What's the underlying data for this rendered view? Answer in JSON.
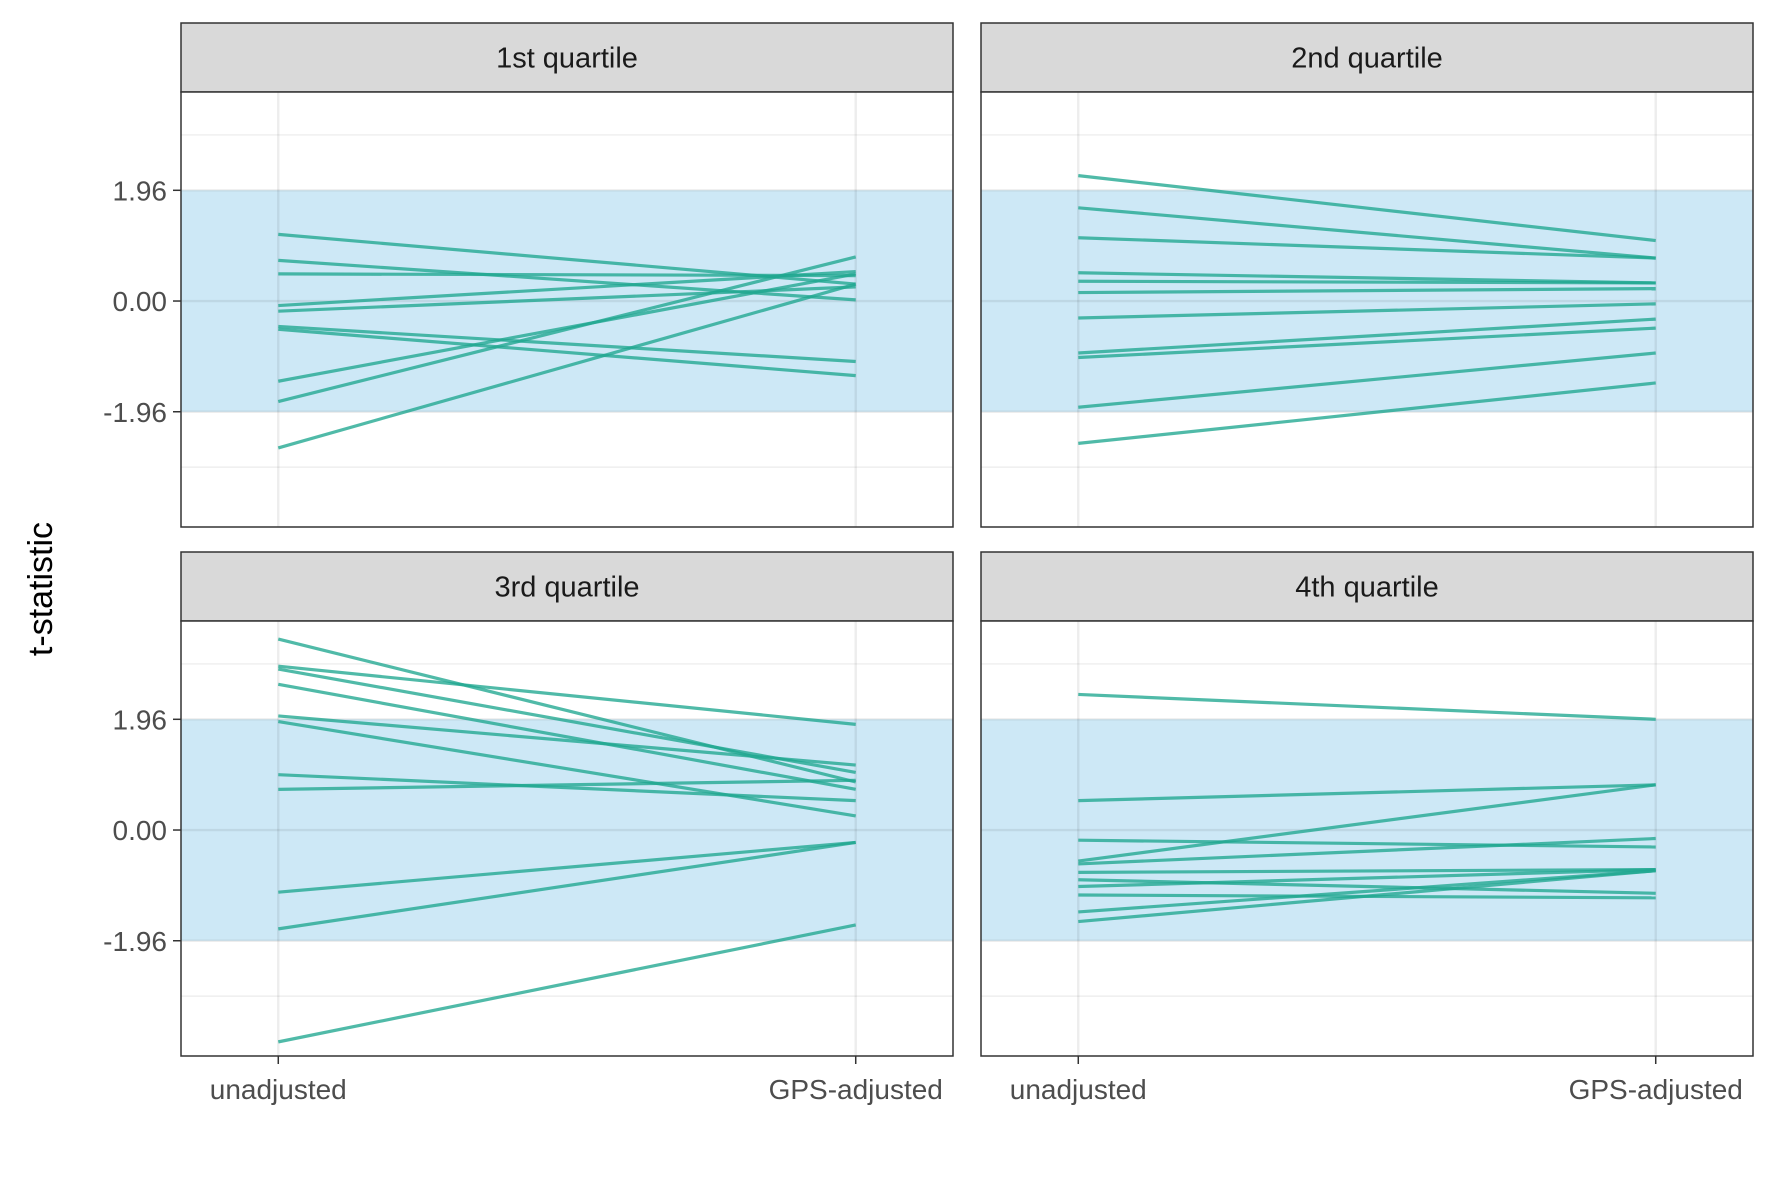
{
  "colors": {
    "line": "#1fa68f",
    "band": "#cde8f6",
    "strip": "#d9d9d9",
    "grid": "#ebebeb",
    "border": "#333333"
  },
  "chart_data": {
    "type": "line",
    "ylabel": "t-statistic",
    "x": [
      "unadjusted",
      "GPS-adjusted"
    ],
    "yticks": [
      1.96,
      0.0,
      -1.96
    ],
    "ytick_labels": [
      "1.96",
      "0.00",
      "-1.96"
    ],
    "ylim": [
      -4.0,
      3.7
    ],
    "band": [
      -1.96,
      1.96
    ],
    "grid": true,
    "legend": "none",
    "panels": [
      {
        "title": "1st quartile",
        "series": [
          {
            "values": [
              1.18,
              0.3
            ]
          },
          {
            "values": [
              0.72,
              0.02
            ]
          },
          {
            "values": [
              0.48,
              0.45
            ]
          },
          {
            "values": [
              -0.08,
              0.52
            ]
          },
          {
            "values": [
              -0.18,
              0.25
            ]
          },
          {
            "values": [
              -0.45,
              -1.07
            ]
          },
          {
            "values": [
              -0.5,
              -1.32
            ]
          },
          {
            "values": [
              -1.42,
              0.48
            ]
          },
          {
            "values": [
              -1.78,
              0.78
            ]
          },
          {
            "values": [
              -2.6,
              0.3
            ]
          }
        ]
      },
      {
        "title": "2nd quartile",
        "series": [
          {
            "values": [
              2.22,
              1.07
            ]
          },
          {
            "values": [
              1.65,
              0.76
            ]
          },
          {
            "values": [
              1.12,
              0.76
            ]
          },
          {
            "values": [
              0.5,
              0.32
            ]
          },
          {
            "values": [
              0.35,
              0.32
            ]
          },
          {
            "values": [
              0.15,
              0.22
            ]
          },
          {
            "values": [
              -0.3,
              -0.05
            ]
          },
          {
            "values": [
              -0.92,
              -0.32
            ]
          },
          {
            "values": [
              -1.0,
              -0.48
            ]
          },
          {
            "values": [
              -1.88,
              -0.92
            ]
          },
          {
            "values": [
              -2.52,
              -1.45
            ]
          }
        ]
      },
      {
        "title": "3rd quartile",
        "series": [
          {
            "values": [
              3.38,
              0.85
            ]
          },
          {
            "values": [
              2.9,
              1.87
            ]
          },
          {
            "values": [
              2.85,
              1.02
            ]
          },
          {
            "values": [
              2.58,
              0.72
            ]
          },
          {
            "values": [
              2.02,
              1.15
            ]
          },
          {
            "values": [
              1.92,
              0.25
            ]
          },
          {
            "values": [
              0.98,
              0.52
            ]
          },
          {
            "values": [
              0.72,
              0.88
            ]
          },
          {
            "values": [
              -1.1,
              -0.22
            ]
          },
          {
            "values": [
              -1.75,
              -0.22
            ]
          },
          {
            "values": [
              -3.75,
              -1.68
            ]
          }
        ]
      },
      {
        "title": "4th quartile",
        "series": [
          {
            "values": [
              2.4,
              1.96
            ]
          },
          {
            "values": [
              0.52,
              0.8
            ]
          },
          {
            "values": [
              -0.55,
              0.8
            ]
          },
          {
            "values": [
              -0.18,
              -0.3
            ]
          },
          {
            "values": [
              -0.6,
              -0.15
            ]
          },
          {
            "values": [
              -0.75,
              -0.7
            ]
          },
          {
            "values": [
              -0.88,
              -1.12
            ]
          },
          {
            "values": [
              -1.0,
              -0.7
            ]
          },
          {
            "values": [
              -1.45,
              -0.72
            ]
          },
          {
            "values": [
              -1.62,
              -0.72
            ]
          },
          {
            "values": [
              -1.15,
              -1.2
            ]
          }
        ]
      }
    ]
  }
}
